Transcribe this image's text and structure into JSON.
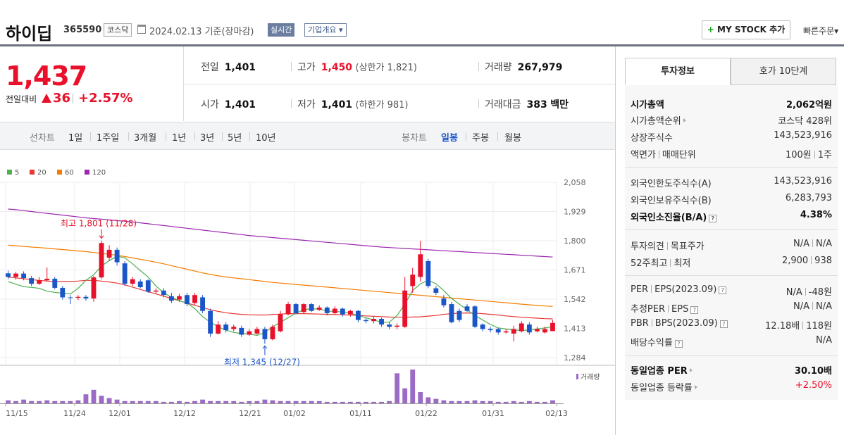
{
  "header": {
    "name": "하이딥",
    "code": "365590",
    "market": "코스닥",
    "date": "2024.02.13 기준(장마감)",
    "realtime": "실시간",
    "company_overview": "기업개요",
    "mystock": "MY STOCK 추가",
    "mystock_plus": "+",
    "quick_order": "빠른주문"
  },
  "price": {
    "current": "1,437",
    "diff_label": "전일대비",
    "diff": "36",
    "rate": "+2.57%"
  },
  "stats": {
    "prev_label": "전일",
    "prev": "1,401",
    "high_label": "고가",
    "high": "1,450",
    "high_limit": "(상한가 1,821)",
    "volume_label": "거래량",
    "volume": "267,979",
    "open_label": "시가",
    "open": "1,401",
    "low_label": "저가",
    "low": "1,401",
    "low_limit": "(하한가 981)",
    "amount_label": "거래대금",
    "amount": "383",
    "amount_unit": "백만"
  },
  "period_bar": {
    "line_label": "선차트",
    "line_periods": [
      "1일",
      "1주일",
      "3개월",
      "1년",
      "3년",
      "5년",
      "10년"
    ],
    "candle_label": "봉차트",
    "candle_periods": [
      "일봉",
      "주봉",
      "월봉"
    ],
    "candle_active": "일봉"
  },
  "chart_data": {
    "type": "candlestick",
    "legend": [
      {
        "name": "5",
        "color": "#4caf50"
      },
      {
        "name": "20",
        "color": "#e53935"
      },
      {
        "name": "60",
        "color": "#f57c00"
      },
      {
        "name": "120",
        "color": "#9c27b0"
      }
    ],
    "y_ticks": [
      "2,058",
      "1,929",
      "1,800",
      "1,671",
      "1,542",
      "1,413",
      "1,284"
    ],
    "ylim": [
      1284,
      2058
    ],
    "x_ticks": [
      "11/15",
      "11/24",
      "12/01",
      "12/12",
      "12/21",
      "01/02",
      "01/11",
      "01/22",
      "01/31",
      "02/13"
    ],
    "high_annotation": "최고 1,801 (11/28)",
    "low_annotation": "최저 1,345 (12/27)",
    "volume_label": "거래량",
    "up_color": "#e8102a",
    "down_color": "#1a56c8",
    "candles": [
      [
        1656,
        1640,
        1668,
        1630
      ],
      [
        1640,
        1655,
        1662,
        1628
      ],
      [
        1655,
        1635,
        1665,
        1625
      ],
      [
        1635,
        1610,
        1645,
        1600
      ],
      [
        1610,
        1625,
        1640,
        1605
      ],
      [
        1625,
        1632,
        1682,
        1620
      ],
      [
        1632,
        1592,
        1640,
        1585
      ],
      [
        1592,
        1550,
        1600,
        1540
      ],
      [
        1550,
        1548,
        1560,
        1520
      ],
      [
        1548,
        1552,
        1560,
        1538
      ],
      [
        1552,
        1545,
        1560,
        1535
      ],
      [
        1545,
        1638,
        1645,
        1530
      ],
      [
        1638,
        1790,
        1801,
        1630
      ],
      [
        1725,
        1760,
        1780,
        1710
      ],
      [
        1760,
        1705,
        1770,
        1690
      ],
      [
        1700,
        1610,
        1710,
        1600
      ],
      [
        1610,
        1630,
        1640,
        1600
      ],
      [
        1620,
        1595,
        1630,
        1590
      ],
      [
        1625,
        1575,
        1630,
        1570
      ],
      [
        1575,
        1580,
        1590,
        1565
      ],
      [
        1580,
        1560,
        1590,
        1550
      ],
      [
        1555,
        1535,
        1570,
        1525
      ],
      [
        1540,
        1555,
        1565,
        1530
      ],
      [
        1560,
        1520,
        1570,
        1510
      ],
      [
        1525,
        1560,
        1570,
        1515
      ],
      [
        1550,
        1490,
        1560,
        1480
      ],
      [
        1490,
        1390,
        1500,
        1375
      ],
      [
        1390,
        1430,
        1445,
        1385
      ],
      [
        1430,
        1405,
        1440,
        1395
      ],
      [
        1410,
        1420,
        1430,
        1400
      ],
      [
        1415,
        1385,
        1425,
        1375
      ],
      [
        1385,
        1400,
        1410,
        1380
      ],
      [
        1390,
        1410,
        1420,
        1385
      ],
      [
        1410,
        1365,
        1420,
        1345
      ],
      [
        1365,
        1420,
        1430,
        1360
      ],
      [
        1400,
        1475,
        1490,
        1395
      ],
      [
        1475,
        1520,
        1530,
        1470
      ],
      [
        1520,
        1480,
        1525,
        1475
      ],
      [
        1485,
        1520,
        1525,
        1480
      ],
      [
        1520,
        1490,
        1525,
        1485
      ],
      [
        1495,
        1505,
        1515,
        1490
      ],
      [
        1505,
        1480,
        1510,
        1470
      ],
      [
        1480,
        1500,
        1510,
        1475
      ],
      [
        1500,
        1475,
        1505,
        1465
      ],
      [
        1475,
        1490,
        1495,
        1465
      ],
      [
        1490,
        1450,
        1495,
        1440
      ],
      [
        1450,
        1445,
        1460,
        1435
      ],
      [
        1445,
        1455,
        1465,
        1435
      ],
      [
        1455,
        1430,
        1460,
        1420
      ],
      [
        1430,
        1420,
        1440,
        1410
      ],
      [
        1420,
        1425,
        1435,
        1410
      ],
      [
        1420,
        1580,
        1640,
        1415
      ],
      [
        1600,
        1650,
        1680,
        1570
      ],
      [
        1640,
        1740,
        1800,
        1620
      ],
      [
        1710,
        1600,
        1720,
        1590
      ],
      [
        1590,
        1570,
        1600,
        1560
      ],
      [
        1545,
        1515,
        1560,
        1505
      ],
      [
        1520,
        1440,
        1530,
        1435
      ],
      [
        1490,
        1450,
        1500,
        1440
      ],
      [
        1510,
        1490,
        1520,
        1485
      ],
      [
        1510,
        1420,
        1515,
        1415
      ],
      [
        1430,
        1410,
        1435,
        1400
      ],
      [
        1410,
        1405,
        1420,
        1395
      ],
      [
        1410,
        1395,
        1415,
        1385
      ],
      [
        1395,
        1400,
        1410,
        1390
      ],
      [
        1390,
        1410,
        1425,
        1355
      ],
      [
        1400,
        1435,
        1445,
        1395
      ],
      [
        1430,
        1395,
        1440,
        1385
      ],
      [
        1400,
        1410,
        1420,
        1395
      ],
      [
        1395,
        1410,
        1420,
        1390
      ],
      [
        1401,
        1437,
        1450,
        1401
      ]
    ],
    "ma5": [
      1620,
      1608,
      1597,
      1594,
      1590,
      1577,
      1572,
      1568,
      1565,
      1590,
      1625,
      1650,
      1688,
      1712,
      1732,
      1724,
      1698,
      1668,
      1640,
      1600,
      1570,
      1550,
      1535,
      1525,
      1500,
      1465,
      1440,
      1420,
      1405,
      1395,
      1390,
      1388,
      1382,
      1395,
      1420,
      1440,
      1460,
      1480,
      1495,
      1500,
      1498,
      1490,
      1487,
      1486,
      1480,
      1470,
      1460,
      1450,
      1440,
      1440,
      1470,
      1520,
      1580,
      1610,
      1625,
      1610,
      1580,
      1545,
      1520,
      1495,
      1470,
      1450,
      1430,
      1415,
      1410,
      1405,
      1405,
      1405,
      1410,
      1415,
      1420
    ],
    "ma20": [
      1640,
      1636,
      1632,
      1628,
      1625,
      1622,
      1620,
      1620,
      1620,
      1622,
      1625,
      1625,
      1622,
      1618,
      1613,
      1605,
      1595,
      1585,
      1575,
      1565,
      1555,
      1545,
      1535,
      1525,
      1515,
      1505,
      1495,
      1488,
      1482,
      1478,
      1475,
      1473,
      1472,
      1472,
      1474,
      1476,
      1478,
      1478,
      1478,
      1477,
      1476,
      1475,
      1474,
      1473,
      1472,
      1470,
      1468,
      1466,
      1465,
      1463,
      1462,
      1462,
      1463,
      1464,
      1467,
      1470,
      1475,
      1478,
      1480,
      1481,
      1480,
      1478,
      1475,
      1472,
      1468,
      1465,
      1462,
      1460,
      1458,
      1456,
      1455
    ],
    "ma60": [
      1780,
      1778,
      1775,
      1772,
      1770,
      1767,
      1764,
      1761,
      1758,
      1755,
      1752,
      1748,
      1744,
      1740,
      1736,
      1730,
      1724,
      1718,
      1712,
      1705,
      1698,
      1690,
      1682,
      1674,
      1666,
      1658,
      1651,
      1645,
      1640,
      1636,
      1632,
      1628,
      1624,
      1620,
      1616,
      1613,
      1610,
      1607,
      1604,
      1601,
      1598,
      1595,
      1592,
      1589,
      1586,
      1583,
      1580,
      1577,
      1574,
      1571,
      1568,
      1565,
      1562,
      1559,
      1556,
      1553,
      1550,
      1547,
      1544,
      1541,
      1538,
      1535,
      1532,
      1529,
      1526,
      1523,
      1520,
      1517,
      1514,
      1512,
      1510
    ],
    "ma120": [
      1940,
      1937,
      1933,
      1929,
      1925,
      1921,
      1917,
      1913,
      1909,
      1905,
      1901,
      1898,
      1895,
      1892,
      1889,
      1886,
      1883,
      1879,
      1875,
      1871,
      1867,
      1863,
      1859,
      1855,
      1851,
      1847,
      1843,
      1839,
      1835,
      1831,
      1827,
      1823,
      1820,
      1817,
      1814,
      1811,
      1808,
      1805,
      1802,
      1799,
      1796,
      1793,
      1790,
      1787,
      1784,
      1781,
      1778,
      1775,
      1772,
      1770,
      1768,
      1766,
      1764,
      1762,
      1760,
      1758,
      1756,
      1754,
      1752,
      1750,
      1748,
      1746,
      1744,
      1742,
      1740,
      1738,
      1736,
      1734,
      1732,
      1730,
      1728
    ],
    "volumes": [
      4,
      3,
      5,
      3,
      3,
      4,
      3,
      3,
      3,
      4,
      12,
      18,
      10,
      7,
      5,
      3,
      3,
      3,
      3,
      3,
      2,
      2,
      3,
      2,
      3,
      5,
      3,
      3,
      3,
      3,
      2,
      3,
      3,
      5,
      4,
      3,
      3,
      3,
      3,
      3,
      3,
      2,
      2,
      2,
      2,
      2,
      2,
      2,
      2,
      3,
      40,
      20,
      45,
      15,
      8,
      6,
      4,
      3,
      3,
      3,
      4,
      3,
      3,
      2,
      2,
      3,
      2,
      3,
      2,
      2,
      4
    ]
  },
  "right_panel": {
    "tabs": [
      "투자정보",
      "호가 10단계"
    ],
    "market_cap_label": "시가총액",
    "market_cap": "2,062억원",
    "market_cap_rank_label": "시가총액순위",
    "market_cap_rank": "코스닥 428위",
    "listed_shares_label": "상장주식수",
    "listed_shares": "143,523,916",
    "par_label": "액면가",
    "trade_unit_label": "매매단위",
    "par": "100원",
    "trade_unit": "1주",
    "foreign_limit_label": "외국인한도주식수(A)",
    "foreign_limit": "143,523,916",
    "foreign_hold_label": "외국인보유주식수(B)",
    "foreign_hold": "6,283,793",
    "foreign_ratio_label": "외국인소진율(B/A)",
    "foreign_ratio": "4.38%",
    "opinion_label": "투자의견",
    "target_label": "목표주가",
    "opinion": "N/A",
    "target": "N/A",
    "w52_high_label": "52주최고",
    "w52_low_label": "최저",
    "w52_high": "2,900",
    "w52_low": "938",
    "per_label": "PER",
    "eps_label": "EPS(2023.09)",
    "per": "N/A",
    "eps": "-48원",
    "est_per_label": "추정PER",
    "est_eps_label": "EPS",
    "est_per": "N/A",
    "est_eps": "N/A",
    "pbr_label": "PBR",
    "bps_label": "BPS(2023.09)",
    "pbr": "12.18배",
    "bps": "118원",
    "div_label": "배당수익률",
    "div": "N/A",
    "ind_per_label": "동일업종 PER",
    "ind_per": "30.10배",
    "ind_rate_label": "동일업종 등락률",
    "ind_rate": "+2.50%"
  }
}
